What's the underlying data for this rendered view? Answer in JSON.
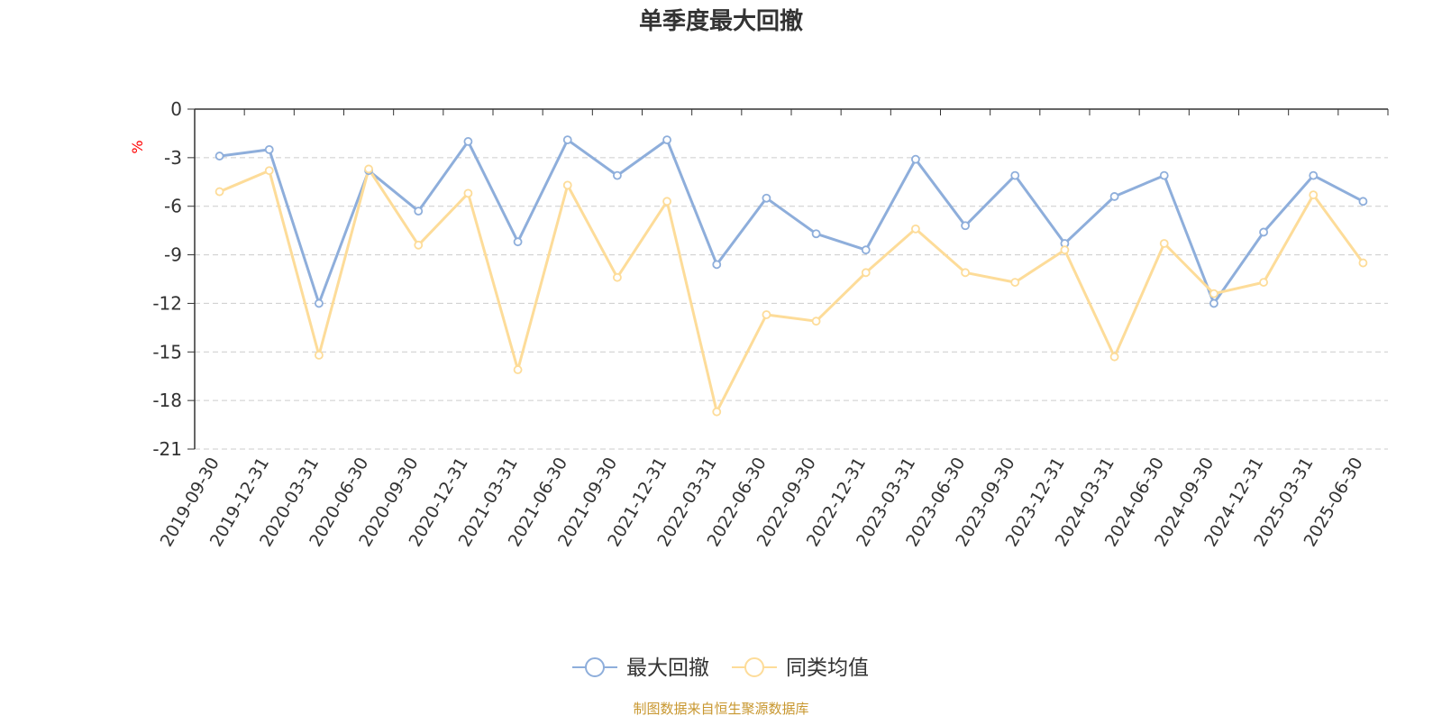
{
  "chart_data": {
    "type": "line",
    "title": "单季度最大回撤",
    "ylabel": "%",
    "source": "制图数据来自恒生聚源数据库",
    "ylim": [
      -21,
      0
    ],
    "yticks": [
      0,
      -3,
      -6,
      -9,
      -12,
      -15,
      -18,
      -21
    ],
    "grid": true,
    "legend_position": "bottom-center",
    "categories": [
      "2019-09-30",
      "2019-12-31",
      "2020-03-31",
      "2020-06-30",
      "2020-09-30",
      "2020-12-31",
      "2021-03-31",
      "2021-06-30",
      "2021-09-30",
      "2021-12-31",
      "2022-03-31",
      "2022-06-30",
      "2022-09-30",
      "2022-12-31",
      "2023-03-31",
      "2023-06-30",
      "2023-09-30",
      "2023-12-31",
      "2024-03-31",
      "2024-06-30",
      "2024-09-30",
      "2024-12-31",
      "2025-03-31",
      "2025-06-30"
    ],
    "series": [
      {
        "name": "最大回撤",
        "color": "#8eaedb",
        "values": [
          -2.9,
          -2.5,
          -12.0,
          -3.8,
          -6.3,
          -2.0,
          -8.2,
          -1.9,
          -4.1,
          -1.9,
          -9.6,
          -5.5,
          -7.7,
          -8.7,
          -3.1,
          -7.2,
          -4.1,
          -8.3,
          -5.4,
          -4.1,
          -12.0,
          -7.6,
          -4.1,
          -5.7
        ]
      },
      {
        "name": "同类均值",
        "color": "#fddc99",
        "values": [
          -5.1,
          -3.8,
          -15.2,
          -3.7,
          -8.4,
          -5.2,
          -16.1,
          -4.7,
          -10.4,
          -5.7,
          -18.7,
          -12.7,
          -13.1,
          -10.1,
          -7.4,
          -10.1,
          -10.7,
          -8.7,
          -15.3,
          -8.3,
          -11.4,
          -10.7,
          -5.3,
          -9.5
        ]
      }
    ]
  }
}
